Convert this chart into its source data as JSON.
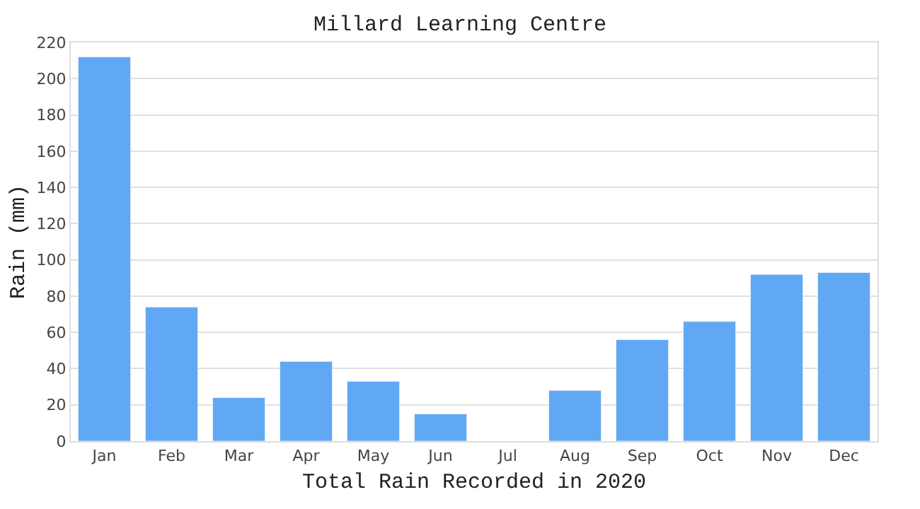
{
  "chart_data": {
    "type": "bar",
    "title": "Millard Learning Centre",
    "xlabel": "Total Rain Recorded in 2020",
    "ylabel": "Rain (mm)",
    "categories": [
      "Jan",
      "Feb",
      "Mar",
      "Apr",
      "May",
      "Jun",
      "Jul",
      "Aug",
      "Sep",
      "Oct",
      "Nov",
      "Dec"
    ],
    "values": [
      212,
      74,
      24,
      44,
      33,
      15,
      null,
      28,
      56,
      66,
      92,
      93
    ],
    "color": "#60a8f4",
    "ylim": [
      0,
      220
    ],
    "yticks": [
      0,
      20,
      40,
      60,
      80,
      100,
      120,
      140,
      160,
      180,
      200,
      220
    ],
    "grid": "y"
  }
}
